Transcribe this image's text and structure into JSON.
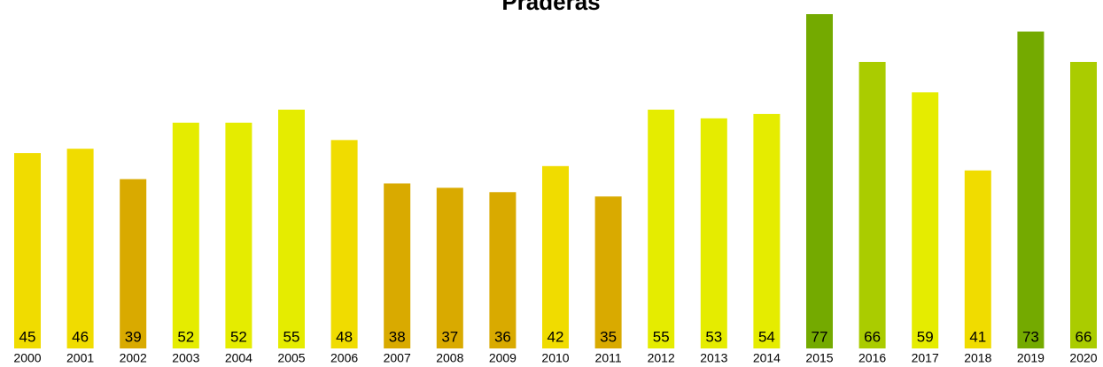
{
  "chart_data": {
    "type": "bar",
    "title": "Praderas",
    "categories": [
      "2000",
      "2001",
      "2002",
      "2003",
      "2004",
      "2005",
      "2006",
      "2007",
      "2008",
      "2009",
      "2010",
      "2011",
      "2012",
      "2013",
      "2014",
      "2015",
      "2016",
      "2017",
      "2018",
      "2019",
      "2020"
    ],
    "values": [
      45,
      46,
      39,
      52,
      52,
      55,
      48,
      38,
      37,
      36,
      42,
      35,
      55,
      53,
      54,
      77,
      66,
      59,
      41,
      73,
      66
    ],
    "colors": [
      "#f0dc00",
      "#f0dc00",
      "#d9aa00",
      "#e5ec00",
      "#e5ec00",
      "#e5ec00",
      "#f0dc00",
      "#d9aa00",
      "#d9aa00",
      "#d9aa00",
      "#f0dc00",
      "#d9aa00",
      "#e5ec00",
      "#e5ec00",
      "#e5ec00",
      "#74aa00",
      "#aacc00",
      "#e5ec00",
      "#f0dc00",
      "#74aa00",
      "#aacc00"
    ]
  }
}
